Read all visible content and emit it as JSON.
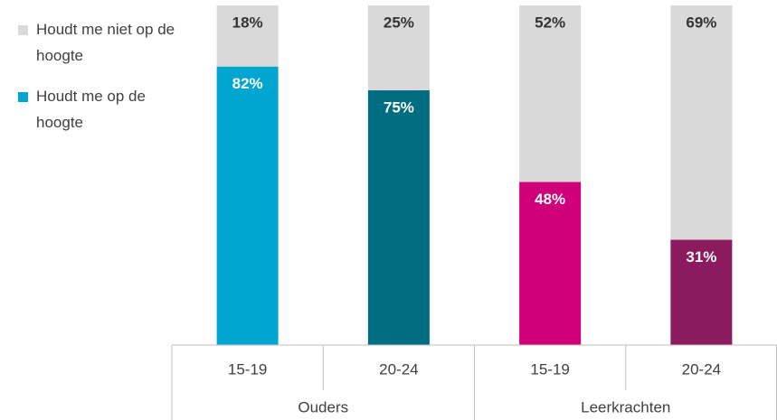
{
  "chart_data": {
    "type": "bar",
    "stacked": true,
    "groups": [
      {
        "name": "Ouders",
        "categories": [
          "15-19",
          "20-24"
        ]
      },
      {
        "name": "Leerkrachten",
        "categories": [
          "15-19",
          "20-24"
        ]
      }
    ],
    "series": [
      {
        "name": "Houdt me op de hoogte",
        "color": "#00a6cf",
        "colors": [
          "#00a6cf",
          "#006e80",
          "#d0007a",
          "#8b1a5e"
        ],
        "values": [
          82,
          75,
          48,
          31
        ],
        "value_labels": [
          "82%",
          "75%",
          "48%",
          "31%"
        ]
      },
      {
        "name": "Houdt me niet op de hoogte",
        "color": "#d9d9d9",
        "values": [
          18,
          25,
          52,
          69
        ],
        "value_labels": [
          "18%",
          "25%",
          "52%",
          "69%"
        ]
      }
    ],
    "ylim": [
      0,
      100
    ]
  }
}
